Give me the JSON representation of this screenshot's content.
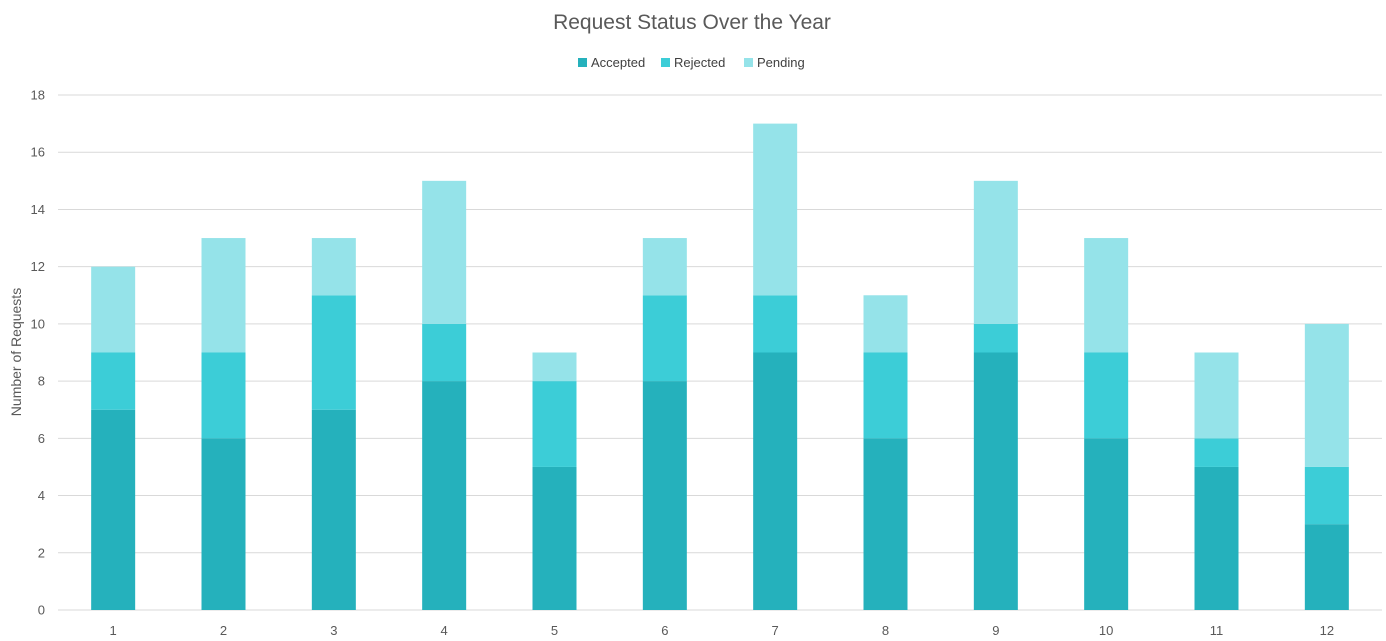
{
  "chart_data": {
    "type": "bar",
    "stacked": true,
    "title": "Request Status Over the Year",
    "xlabel": "",
    "ylabel": "Number of Requests",
    "ylim": [
      0,
      18
    ],
    "yticks": [
      0,
      2,
      4,
      6,
      8,
      10,
      12,
      14,
      16,
      18
    ],
    "grid": true,
    "legend_position": "top",
    "categories": [
      "1",
      "2",
      "3",
      "4",
      "5",
      "6",
      "7",
      "8",
      "9",
      "10",
      "11",
      "12"
    ],
    "series": [
      {
        "name": "Accepted",
        "color": "#25b1bc",
        "values": [
          7,
          6,
          7,
          8,
          5,
          8,
          9,
          6,
          9,
          6,
          5,
          3
        ]
      },
      {
        "name": "Rejected",
        "color": "#3ccdd7",
        "values": [
          2,
          3,
          4,
          2,
          3,
          3,
          2,
          3,
          1,
          3,
          1,
          2
        ]
      },
      {
        "name": "Pending",
        "color": "#95e3e9",
        "values": [
          3,
          4,
          2,
          5,
          1,
          2,
          6,
          2,
          5,
          4,
          3,
          5
        ]
      }
    ]
  }
}
